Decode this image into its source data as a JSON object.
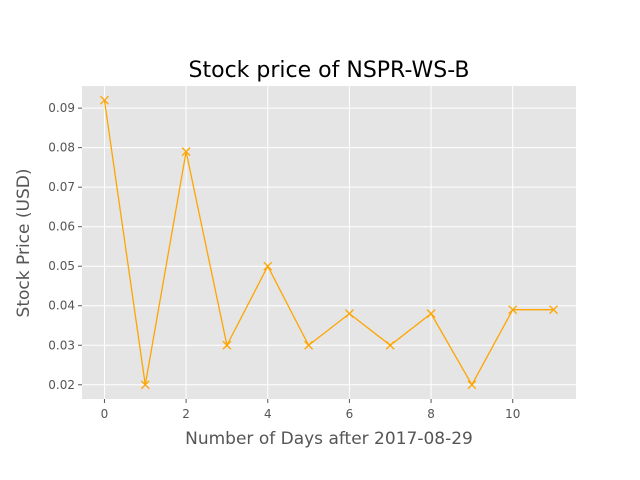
{
  "chart_data": {
    "type": "line",
    "title": "Stock price of NSPR-WS-B",
    "xlabel": "Number of Days after 2017-08-29",
    "ylabel": "Stock Price (USD)",
    "x": [
      0,
      1,
      2,
      3,
      4,
      5,
      6,
      7,
      8,
      9,
      10,
      11
    ],
    "series": [
      {
        "values": [
          0.092,
          0.02,
          0.079,
          0.03,
          0.05,
          0.03,
          0.038,
          0.03,
          0.038,
          0.02,
          0.039,
          0.039
        ]
      }
    ],
    "xlim": [
      -0.55,
      11.55
    ],
    "ylim": [
      0.0164,
      0.0956
    ],
    "x_ticks": [
      0,
      2,
      4,
      6,
      8,
      10
    ],
    "x_tick_labels": [
      "0",
      "2",
      "4",
      "6",
      "8",
      "10"
    ],
    "y_ticks": [
      0.02,
      0.03,
      0.04,
      0.05,
      0.06,
      0.07,
      0.08,
      0.09
    ],
    "y_tick_labels": [
      "0.02",
      "0.03",
      "0.04",
      "0.05",
      "0.06",
      "0.07",
      "0.08",
      "0.09"
    ],
    "grid": true,
    "marker": "x",
    "colors": {
      "line": "#ffa500",
      "plot_background": "#e5e5e5",
      "grid": "#ffffff",
      "tick": "#555555"
    }
  }
}
